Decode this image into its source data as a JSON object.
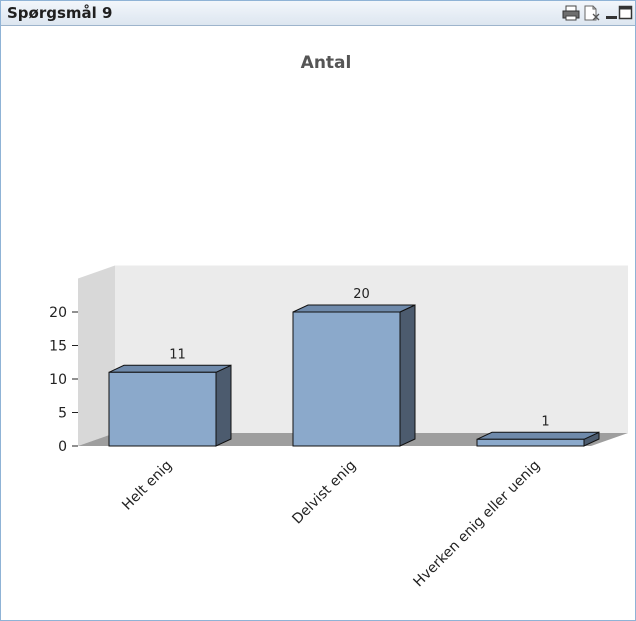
{
  "window": {
    "title": "Spørgsmål 9",
    "icons": [
      "printer-icon",
      "send-to-excel-icon",
      "minimize-icon",
      "maximize-icon"
    ]
  },
  "chart_data": {
    "type": "bar",
    "title": "Antal",
    "categories": [
      "Helt enig",
      "Delvist enig",
      "Hverken enig eller uenig"
    ],
    "values": [
      11,
      20,
      1
    ],
    "data_labels": [
      "11",
      "20",
      "1"
    ],
    "ylim": [
      0,
      25
    ],
    "yticks": [
      0,
      5,
      10,
      15,
      20
    ],
    "ytick_labels": [
      "0",
      "5",
      "10",
      "15",
      "20"
    ],
    "xlabel": "",
    "ylabel": "",
    "style": "3d",
    "grid": false,
    "legend": false,
    "colors": {
      "bar_front": "#8ba9cb",
      "bar_side": "#4c5b6e",
      "bar_top": "#6f8aab",
      "back_wall": "#ebebeb",
      "side_wall": "#d8d8d8",
      "floor": "#9e9e9e"
    }
  }
}
